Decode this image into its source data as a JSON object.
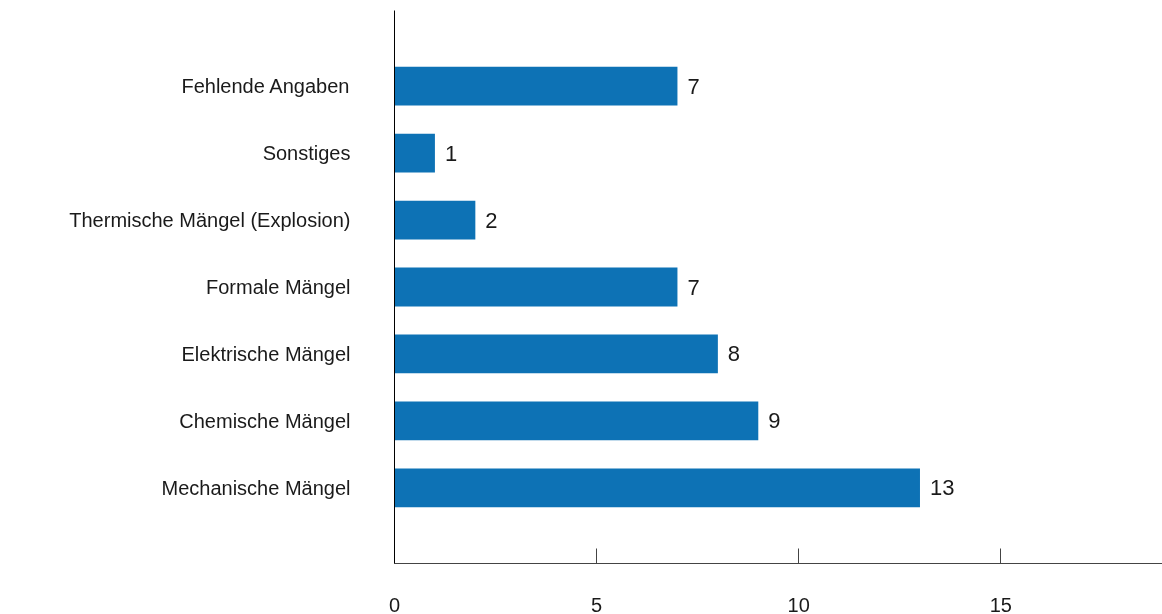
{
  "chart_data": {
    "type": "bar",
    "orientation": "horizontal",
    "categories": [
      "Fehlende Angaben",
      "Sonstiges",
      "Thermische Mängel (Explosion)",
      "Formale Mängel",
      "Elektrische Mängel",
      "Chemische Mängel",
      "Mechanische Mängel"
    ],
    "values": [
      7,
      1,
      2,
      7,
      8,
      9,
      13
    ],
    "color": "#0d72b5",
    "xlim": [
      0,
      19
    ],
    "xticks": [
      0,
      5,
      10,
      15
    ],
    "data_labels": true,
    "grid": false
  }
}
